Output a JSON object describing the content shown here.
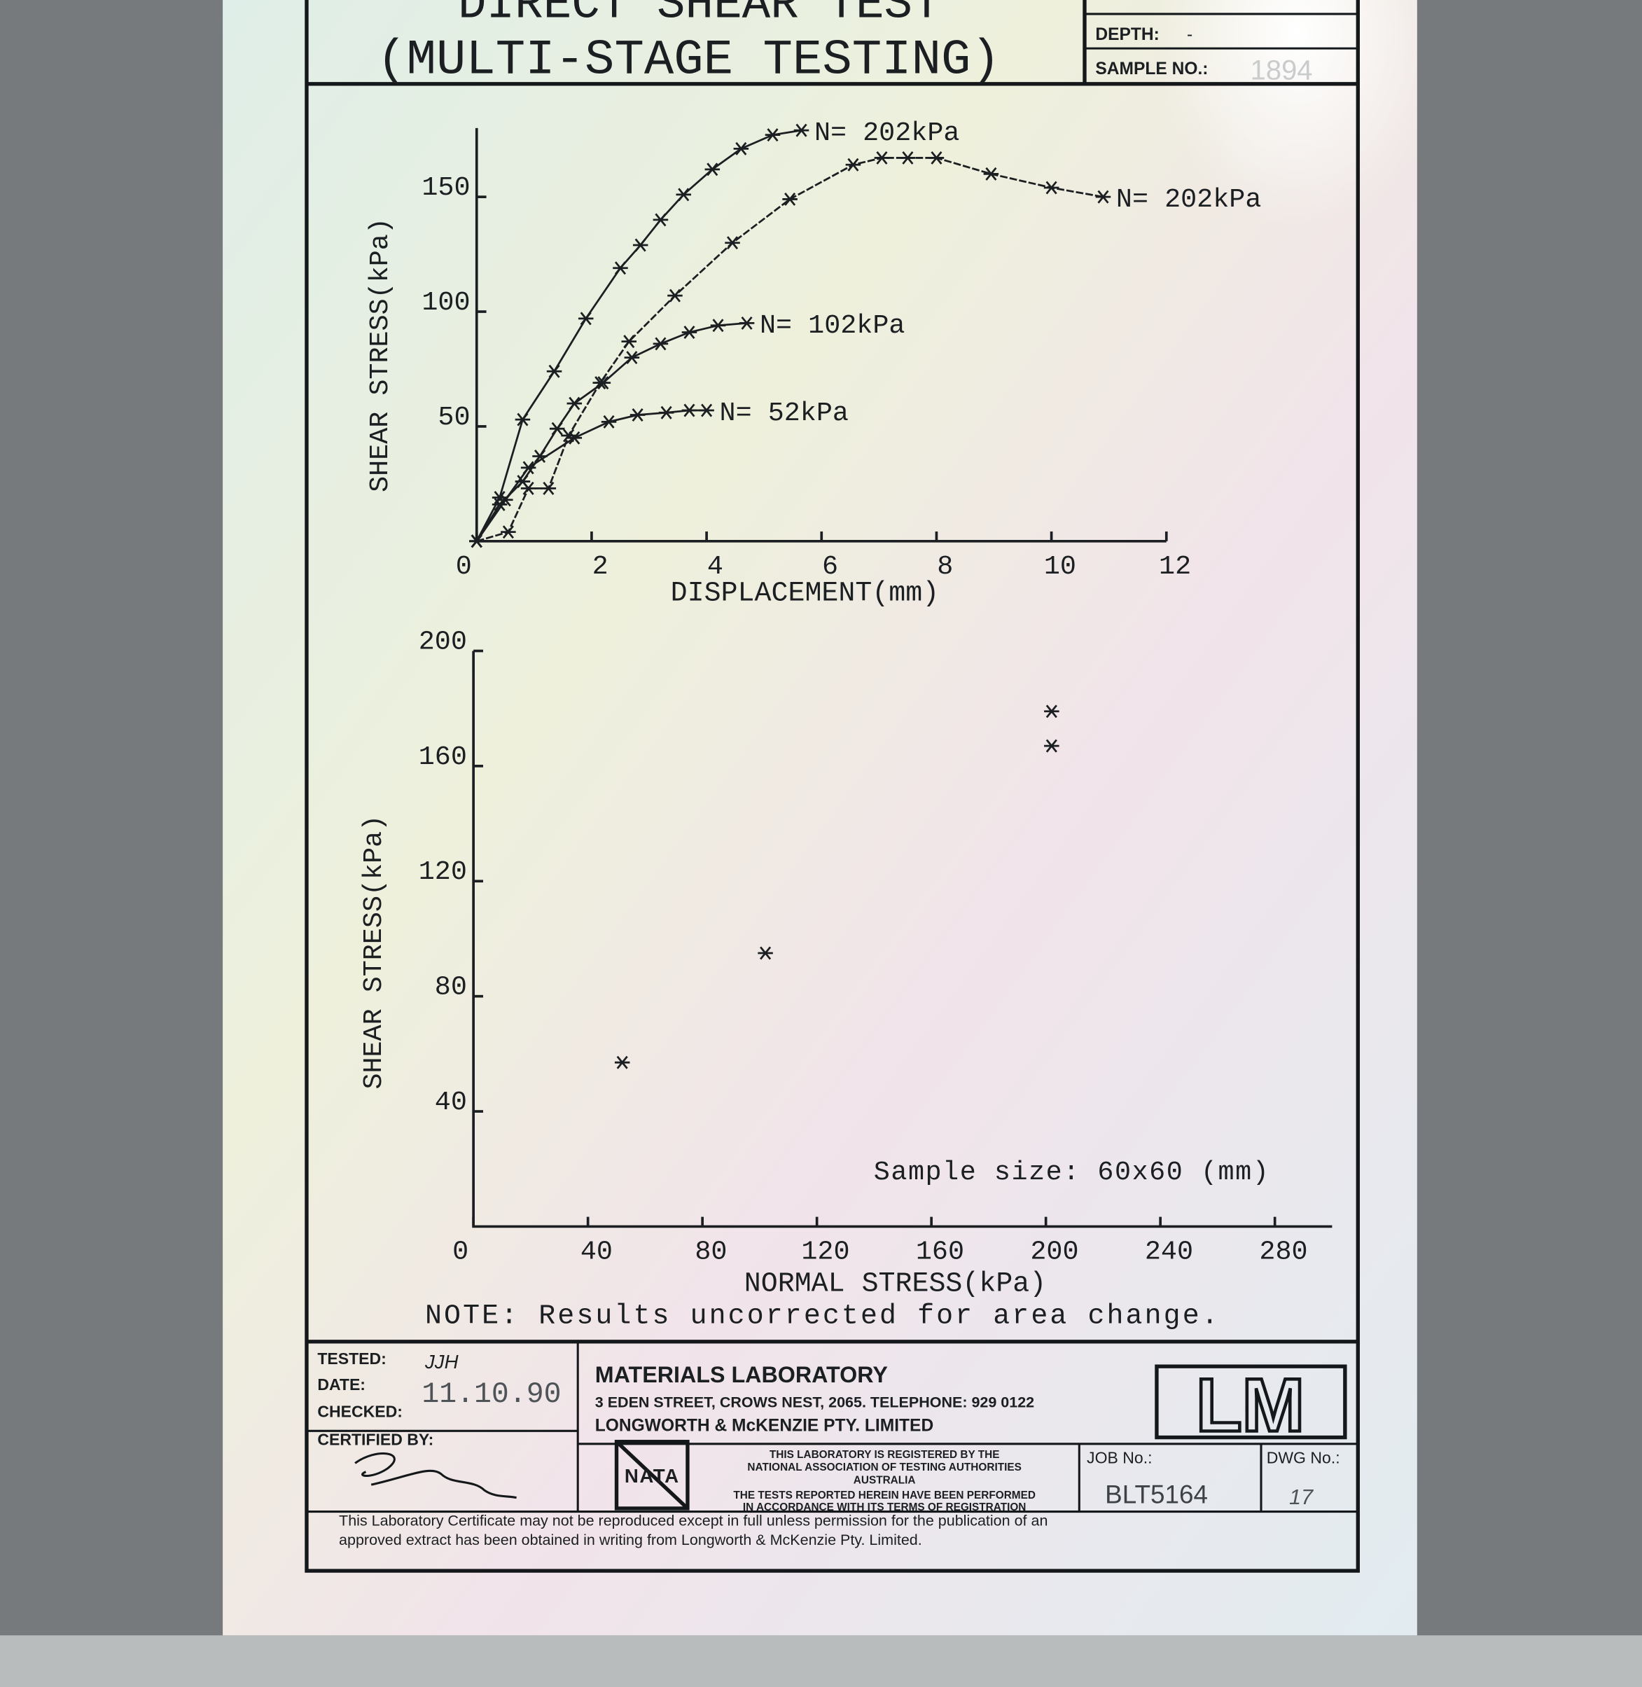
{
  "header": {
    "title": "DIRECT SHEAR TEST",
    "subtitle": "(MULTI-STAGE TESTING)",
    "depth_label": "DEPTH:",
    "depth": "-",
    "sample_label": "SAMPLE NO.:",
    "sample": "1894"
  },
  "chart_data": [
    {
      "type": "line",
      "x_label": "DISPLACEMENT(mm)",
      "y_label": "SHEAR STRESS(kPa)",
      "xlim": [
        0,
        12
      ],
      "ylim": [
        0,
        180
      ],
      "xticks": [
        0,
        2,
        4,
        6,
        8,
        10,
        12
      ],
      "yticks": [
        50,
        100,
        150
      ],
      "series": [
        {
          "name": "N= 202kPa",
          "color": "#1c1f22",
          "x": [
            0,
            0.4,
            0.8,
            1.35,
            1.9,
            2.5,
            2.85,
            3.2,
            3.6,
            4.1,
            4.6,
            5.15,
            5.65
          ],
          "values": [
            0,
            19,
            53,
            74,
            97,
            119,
            129,
            140,
            151,
            162,
            171,
            177,
            179
          ]
        },
        {
          "name": "N= 202kPa",
          "color": "#1c1f22",
          "x": [
            0,
            0.55,
            0.9,
            1.25,
            1.6,
            2.15,
            2.65,
            3.45,
            4.45,
            5.45,
            6.55,
            7.05,
            7.5,
            8.0,
            8.95,
            10.0,
            10.9
          ],
          "values": [
            0,
            4,
            23,
            23,
            46,
            69,
            87,
            107,
            130,
            149,
            164,
            167,
            167,
            167,
            160,
            154,
            150
          ]
        },
        {
          "name": "N= 102kPa",
          "color": "#1c1f22",
          "x": [
            0,
            0.4,
            0.8,
            1.1,
            1.4,
            1.7,
            2.2,
            2.7,
            3.2,
            3.7,
            4.2,
            4.7
          ],
          "values": [
            0,
            16,
            26,
            37,
            49,
            60,
            69,
            80,
            86,
            91,
            94,
            95
          ]
        },
        {
          "name": "N= 52kPa",
          "color": "#1c1f22",
          "x": [
            0,
            0.5,
            0.9,
            1.7,
            2.3,
            2.8,
            3.3,
            3.7,
            4.0
          ],
          "values": [
            0,
            18,
            32,
            45,
            52,
            55,
            56,
            57,
            57
          ]
        }
      ]
    },
    {
      "type": "scatter",
      "x_label": "NORMAL STRESS(kPa)",
      "y_label": "SHEAR STRESS(kPa)",
      "xlim": [
        0,
        300
      ],
      "ylim": [
        0,
        200
      ],
      "xticks": [
        0,
        40,
        80,
        120,
        160,
        200,
        240,
        280
      ],
      "yticks": [
        40,
        80,
        120,
        160,
        200
      ],
      "x": [
        52,
        102,
        202,
        202
      ],
      "values": [
        57,
        95,
        167,
        179
      ],
      "color": "#1c1f22",
      "annotation": "Sample size: 60x60 (mm)"
    }
  ],
  "note": "NOTE: Results uncorrected for area change.",
  "footer": {
    "tested_label": "TESTED:",
    "tested": "JJH",
    "date_label": "DATE:",
    "date": "11.10.90",
    "checked_label": "CHECKED:",
    "certified_label": "CERTIFIED BY:",
    "lab_name": "MATERIALS LABORATORY",
    "lab_address": "3 EDEN STREET, CROWS NEST, 2065.   TELEPHONE: 929 0122",
    "lab_company": "LONGWORTH & McKENZIE PTY. LIMITED",
    "logo": "LM",
    "nata_mark": "NATA",
    "nata_text": [
      "THIS LABORATORY IS REGISTERED BY THE",
      "NATIONAL ASSOCIATION OF TESTING AUTHORITIES",
      "AUSTRALIA",
      "THE TESTS REPORTED HEREIN HAVE BEEN PERFORMED",
      "IN ACCORDANCE WITH ITS TERMS OF REGISTRATION"
    ],
    "job_label": "JOB No.:",
    "job": "BLT5164",
    "dwg_label": "DWG No.:",
    "dwg": "17",
    "certificate": [
      "This Laboratory Certificate may not be reproduced except in full unless permission for the publication of an",
      "approved extract has been obtained in writing from Longworth & McKenzie Pty. Limited."
    ]
  }
}
